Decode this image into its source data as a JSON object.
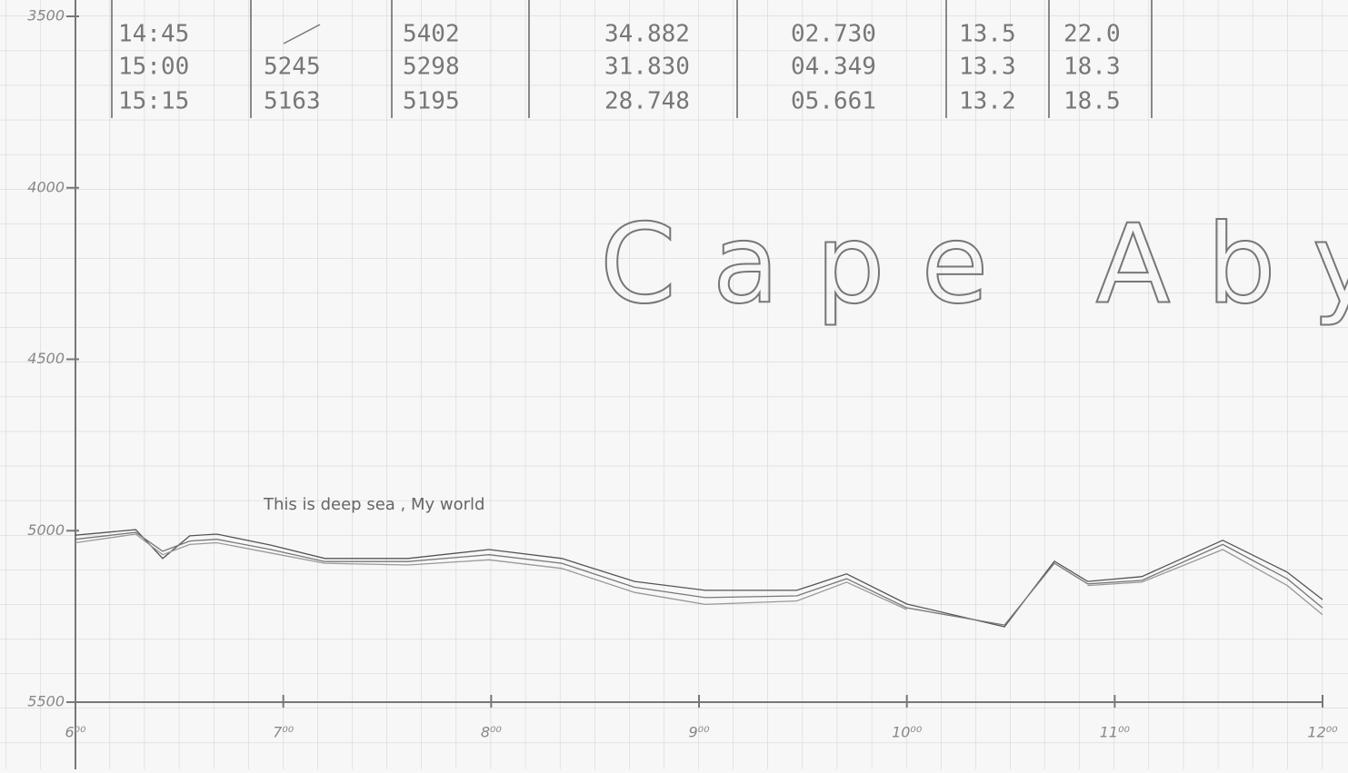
{
  "table": {
    "rows": [
      [
        "14:45",
        null,
        "5402",
        "34.882",
        "02.730",
        "13.5",
        "22.0"
      ],
      [
        "15:00",
        "5245",
        "5298",
        "31.830",
        "04.349",
        "13.3",
        "18.3"
      ],
      [
        "15:15",
        "5163",
        "5195",
        "28.748",
        "05.661",
        "13.2",
        "18.5"
      ]
    ]
  },
  "chart_data": {
    "type": "line",
    "title": "Cape Abyss",
    "annotation": "This is deep sea , My world",
    "x": [
      6.0,
      6.29,
      6.42,
      6.55,
      6.68,
      6.94,
      7.2,
      7.6,
      7.99,
      8.34,
      8.69,
      9.03,
      9.47,
      9.71,
      10.0,
      10.47,
      10.71,
      10.87,
      11.13,
      11.52,
      11.83,
      12.0
    ],
    "series": [
      {
        "color": "#555555",
        "values": [
          5013,
          4997,
          5081,
          5015,
          5010,
          5042,
          5081,
          5081,
          5055,
          5081,
          5148,
          5174,
          5174,
          5126,
          5214,
          5280,
          5089,
          5148,
          5134,
          5028,
          5121,
          5201
        ]
      },
      {
        "color": "#777777",
        "values": [
          5025,
          5005,
          5060,
          5030,
          5025,
          5055,
          5090,
          5090,
          5070,
          5095,
          5165,
          5195,
          5190,
          5140,
          5225,
          5275,
          5095,
          5155,
          5145,
          5040,
          5140,
          5225
        ]
      },
      {
        "color": "#999999",
        "values": [
          5035,
          5010,
          5070,
          5040,
          5035,
          5065,
          5095,
          5100,
          5085,
          5110,
          5180,
          5215,
          5205,
          5150,
          5230,
          null,
          null,
          5160,
          5150,
          5055,
          5160,
          5245
        ]
      }
    ],
    "xlim": [
      6,
      12
    ],
    "ylim": [
      3500,
      5500
    ],
    "y_inverted": true,
    "xticks": [
      {
        "value": 6,
        "label": "6⁰⁰"
      },
      {
        "value": 7,
        "label": "7⁰⁰"
      },
      {
        "value": 8,
        "label": "8⁰⁰"
      },
      {
        "value": 9,
        "label": "9⁰⁰"
      },
      {
        "value": 10,
        "label": "10⁰⁰"
      },
      {
        "value": 11,
        "label": "11⁰⁰"
      },
      {
        "value": 12,
        "label": "12⁰⁰"
      }
    ],
    "yticks": [
      3500,
      4000,
      4500,
      5000,
      5500
    ]
  }
}
